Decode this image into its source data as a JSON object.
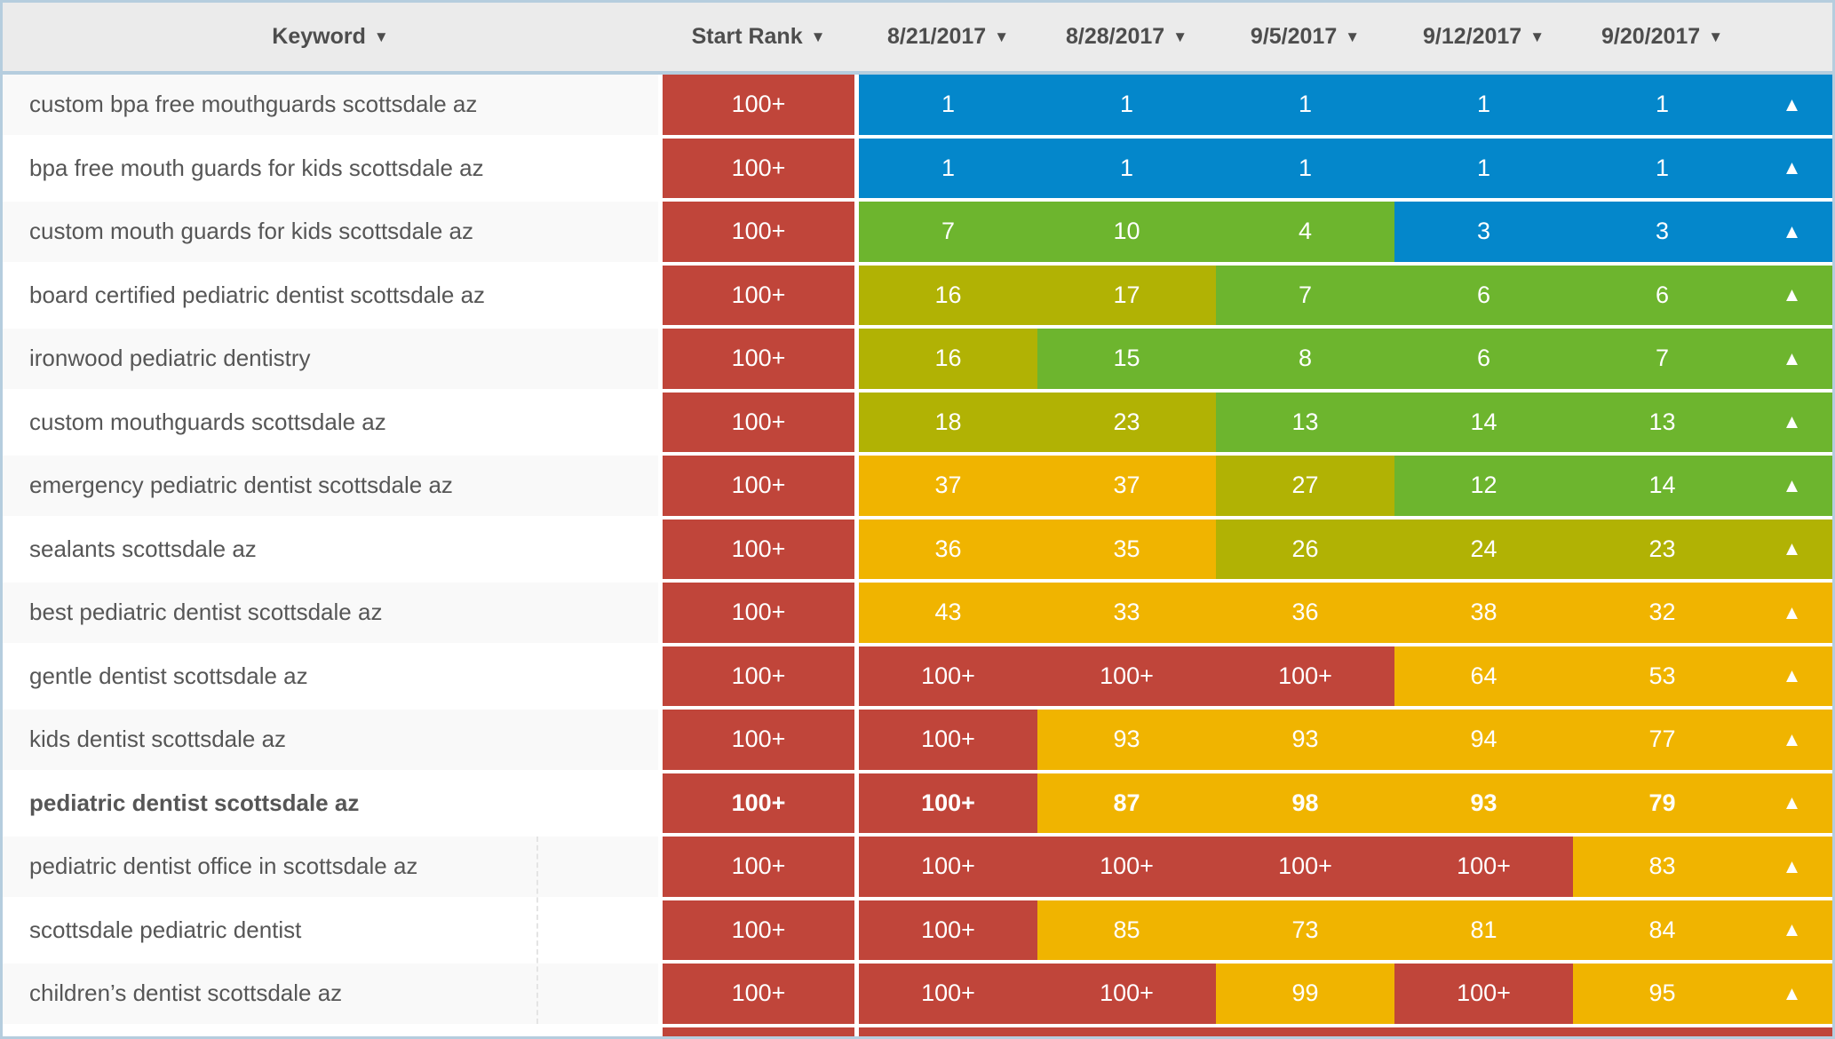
{
  "palette": {
    "blue": "#0487cb",
    "green": "#6db52e",
    "olive": "#b1b204",
    "amber": "#f0b400",
    "red": "#c0453a",
    "header_bg": "#ebebeb",
    "frame_border": "#b5cdde",
    "row_alt_bg": "#f9f9f9",
    "header_text": "#4d4d4d",
    "keyword_text": "#565656"
  },
  "table": {
    "sort_arrow": "▼",
    "trend_arrow": "▲",
    "columns": [
      {
        "label": "Keyword"
      },
      {
        "label": "Start Rank"
      },
      {
        "label": "8/21/2017"
      },
      {
        "label": "8/28/2017"
      },
      {
        "label": "9/5/2017"
      },
      {
        "label": "9/12/2017"
      },
      {
        "label": "9/20/2017"
      }
    ],
    "rows": [
      {
        "keyword": "custom bpa free mouthguards scottsdale az",
        "start_rank": "100+",
        "start_color": "red",
        "values": [
          "1",
          "1",
          "1",
          "1",
          "1"
        ],
        "value_colors": [
          "blue",
          "blue",
          "blue",
          "blue",
          "blue"
        ],
        "trend_color": "blue",
        "bold": false
      },
      {
        "keyword": "bpa free mouth guards for kids scottsdale az",
        "start_rank": "100+",
        "start_color": "red",
        "values": [
          "1",
          "1",
          "1",
          "1",
          "1"
        ],
        "value_colors": [
          "blue",
          "blue",
          "blue",
          "blue",
          "blue"
        ],
        "trend_color": "blue",
        "bold": false
      },
      {
        "keyword": "custom mouth guards for kids scottsdale az",
        "start_rank": "100+",
        "start_color": "red",
        "values": [
          "7",
          "10",
          "4",
          "3",
          "3"
        ],
        "value_colors": [
          "green",
          "green",
          "green",
          "blue",
          "blue"
        ],
        "trend_color": "blue",
        "bold": false
      },
      {
        "keyword": "board certified pediatric dentist scottsdale az",
        "start_rank": "100+",
        "start_color": "red",
        "values": [
          "16",
          "17",
          "7",
          "6",
          "6"
        ],
        "value_colors": [
          "olive",
          "olive",
          "green",
          "green",
          "green"
        ],
        "trend_color": "green",
        "bold": false
      },
      {
        "keyword": "ironwood pediatric dentistry",
        "start_rank": "100+",
        "start_color": "red",
        "values": [
          "16",
          "15",
          "8",
          "6",
          "7"
        ],
        "value_colors": [
          "olive",
          "green",
          "green",
          "green",
          "green"
        ],
        "trend_color": "green",
        "bold": false
      },
      {
        "keyword": "custom mouthguards scottsdale az",
        "start_rank": "100+",
        "start_color": "red",
        "values": [
          "18",
          "23",
          "13",
          "14",
          "13"
        ],
        "value_colors": [
          "olive",
          "olive",
          "green",
          "green",
          "green"
        ],
        "trend_color": "green",
        "bold": false
      },
      {
        "keyword": "emergency pediatric dentist scottsdale az",
        "start_rank": "100+",
        "start_color": "red",
        "values": [
          "37",
          "37",
          "27",
          "12",
          "14"
        ],
        "value_colors": [
          "amber",
          "amber",
          "olive",
          "green",
          "green"
        ],
        "trend_color": "green",
        "bold": false
      },
      {
        "keyword": "sealants scottsdale az",
        "start_rank": "100+",
        "start_color": "red",
        "values": [
          "36",
          "35",
          "26",
          "24",
          "23"
        ],
        "value_colors": [
          "amber",
          "amber",
          "olive",
          "olive",
          "olive"
        ],
        "trend_color": "olive",
        "bold": false
      },
      {
        "keyword": "best pediatric dentist scottsdale az",
        "start_rank": "100+",
        "start_color": "red",
        "values": [
          "43",
          "33",
          "36",
          "38",
          "32"
        ],
        "value_colors": [
          "amber",
          "amber",
          "amber",
          "amber",
          "amber"
        ],
        "trend_color": "amber",
        "bold": false
      },
      {
        "keyword": "gentle dentist scottsdale az",
        "start_rank": "100+",
        "start_color": "red",
        "values": [
          "100+",
          "100+",
          "100+",
          "64",
          "53"
        ],
        "value_colors": [
          "red",
          "red",
          "red",
          "amber",
          "amber"
        ],
        "trend_color": "amber",
        "bold": false
      },
      {
        "keyword": "kids dentist scottsdale az",
        "start_rank": "100+",
        "start_color": "red",
        "values": [
          "100+",
          "93",
          "93",
          "94",
          "77"
        ],
        "value_colors": [
          "red",
          "amber",
          "amber",
          "amber",
          "amber"
        ],
        "trend_color": "amber",
        "bold": false
      },
      {
        "keyword": "pediatric dentist scottsdale az",
        "start_rank": "100+",
        "start_color": "red",
        "values": [
          "100+",
          "87",
          "98",
          "93",
          "79"
        ],
        "value_colors": [
          "red",
          "amber",
          "amber",
          "amber",
          "amber"
        ],
        "trend_color": "amber",
        "bold": true
      },
      {
        "keyword": "pediatric dentist office in scottsdale az",
        "start_rank": "100+",
        "start_color": "red",
        "values": [
          "100+",
          "100+",
          "100+",
          "100+",
          "83"
        ],
        "value_colors": [
          "red",
          "red",
          "red",
          "red",
          "amber"
        ],
        "trend_color": "amber",
        "bold": false
      },
      {
        "keyword": "scottsdale pediatric dentist",
        "start_rank": "100+",
        "start_color": "red",
        "values": [
          "100+",
          "85",
          "73",
          "81",
          "84"
        ],
        "value_colors": [
          "red",
          "amber",
          "amber",
          "amber",
          "amber"
        ],
        "trend_color": "amber",
        "bold": false
      },
      {
        "keyword": "children’s dentist scottsdale az",
        "start_rank": "100+",
        "start_color": "red",
        "values": [
          "100+",
          "100+",
          "99",
          "100+",
          "95"
        ],
        "value_colors": [
          "red",
          "red",
          "amber",
          "red",
          "amber"
        ],
        "trend_color": "amber",
        "bold": false
      },
      {
        "keyword": "",
        "start_rank": "",
        "start_color": "red",
        "values": [
          "",
          "",
          "",
          "",
          ""
        ],
        "value_colors": [
          "red",
          "red",
          "red",
          "red",
          "red"
        ],
        "trend_color": "red",
        "bold": false
      }
    ]
  }
}
